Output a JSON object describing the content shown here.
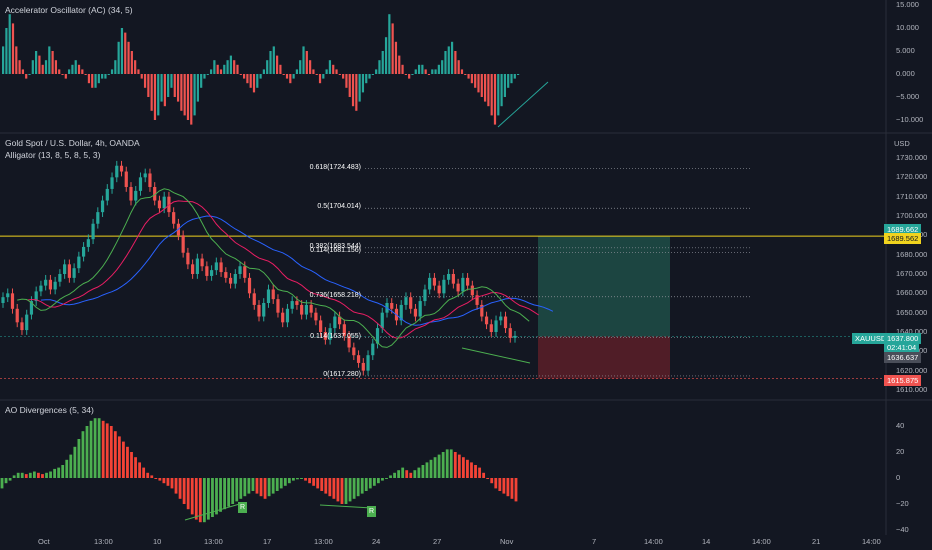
{
  "panels": {
    "ac": {
      "title": "Accelerator Oscillator (AC) (34, 5)"
    },
    "main": {
      "title": "Gold Spot / U.S. Dollar, 4h, OANDA",
      "indicator": "Alligator (13, 8, 5, 8, 5, 3)",
      "currency": "USD"
    },
    "ao": {
      "title": "AO Divergences (5, 34)"
    }
  },
  "ac_axis": [
    "15.000",
    "10.000",
    "5.000",
    "0.000",
    "−5.000",
    "−10.000"
  ],
  "price_axis": [
    "1730.000",
    "1720.000",
    "1710.000",
    "1700.000",
    "1690.000",
    "1680.000",
    "1670.000",
    "1660.000",
    "1650.000",
    "1640.000",
    "1630.000",
    "1620.000",
    "1610.000"
  ],
  "ao_axis": [
    "40",
    "20",
    "0",
    "−20",
    "−40"
  ],
  "time_axis": [
    "Oct",
    "13:00",
    "10",
    "13:00",
    "17",
    "13:00",
    "24",
    "27",
    "Nov",
    "7",
    "14:00",
    "14",
    "14:00",
    "21",
    "14:00"
  ],
  "fib_levels": [
    {
      "label": "0.618(1724.483)",
      "price": 1724.483
    },
    {
      "label": "0.5(1704.014)",
      "price": 1704.014
    },
    {
      "label": "0.382(1683.544)",
      "price": 1683.544
    },
    {
      "label": "0.114(1681.156)",
      "price": 1681.156
    },
    {
      "label": "0.736(1658.218)",
      "price": 1658.218
    },
    {
      "label": "0.114(1637.055)",
      "price": 1637.055
    },
    {
      "label": "0(1617.280)",
      "price": 1617.28
    }
  ],
  "price_tags": {
    "target_upper": "1689.662",
    "target_lower": "1689.562",
    "symbol": "XAUUSD",
    "last": "1637.800",
    "countdown": "02:41:04",
    "level": "1636.637",
    "stop": "1615.875"
  },
  "divergence_markers": [
    "R",
    "R"
  ],
  "colors": {
    "background": "#131722",
    "up": "#26a69a",
    "down": "#ef5350",
    "ao_up": "#4caf50",
    "ao_down": "#f44336",
    "yellow_line": "#f0d31e",
    "jaw": "#2962ff",
    "teeth": "#e91e63",
    "lips": "#4caf50",
    "profit_zone": "#1f4d47",
    "loss_zone": "#5c1f28"
  },
  "chart_data": [
    {
      "type": "bar",
      "title": "Accelerator Oscillator (AC) (34, 5)",
      "ylim": [
        -12,
        16
      ],
      "values": [
        6,
        10,
        13,
        11,
        6,
        3,
        1,
        -1,
        0,
        3,
        5,
        4,
        2,
        3,
        6,
        5,
        3,
        1,
        0,
        -1,
        1,
        2,
        3,
        2,
        1,
        0,
        -2,
        -3,
        -3,
        -2,
        -1,
        -1,
        0,
        1,
        3,
        7,
        10,
        9,
        7,
        5,
        3,
        1,
        -1,
        -3,
        -5,
        -8,
        -10,
        -9,
        -6,
        -7,
        -5,
        -3,
        -5,
        -6,
        -8,
        -9,
        -10,
        -11,
        -9,
        -6,
        -3,
        -1,
        0,
        1,
        3,
        2,
        1,
        2,
        3,
        4,
        3,
        2,
        0,
        -1,
        -2,
        -3,
        -4,
        -3,
        -1,
        1,
        3,
        5,
        6,
        4,
        2,
        0,
        -1,
        -2,
        -1,
        1,
        3,
        6,
        5,
        3,
        1,
        0,
        -2,
        -1,
        1,
        3,
        2,
        1,
        0,
        -1,
        -3,
        -5,
        -7,
        -8,
        -6,
        -4,
        -2,
        -1,
        0,
        1,
        3,
        5,
        8,
        13,
        11,
        7,
        4,
        2,
        0,
        -1,
        0,
        1,
        2,
        2,
        1,
        0,
        1,
        1,
        2,
        3,
        5,
        6,
        7,
        5,
        3,
        1,
        0,
        -1,
        -2,
        -3,
        -4,
        -5,
        -6,
        -7,
        -9,
        -11,
        -9,
        -7,
        -5,
        -3,
        -2,
        -1,
        0
      ]
    },
    {
      "type": "candlestick",
      "title": "Gold Spot / U.S. Dollar, 4h, OANDA",
      "ylabel": "USD",
      "ylim": [
        1606,
        1734
      ],
      "close": [
        1658,
        1660,
        1652,
        1645,
        1641,
        1649,
        1656,
        1661,
        1664,
        1667,
        1662,
        1666,
        1670,
        1675,
        1668,
        1673,
        1679,
        1684,
        1688,
        1696,
        1702,
        1708,
        1714,
        1720,
        1726,
        1723,
        1715,
        1708,
        1713,
        1720,
        1722,
        1715,
        1708,
        1704,
        1710,
        1702,
        1696,
        1690,
        1681,
        1675,
        1670,
        1678,
        1674,
        1669,
        1672,
        1676,
        1671,
        1668,
        1665,
        1670,
        1674,
        1668,
        1660,
        1654,
        1648,
        1655,
        1662,
        1657,
        1650,
        1645,
        1652,
        1656,
        1654,
        1649,
        1654,
        1650,
        1646,
        1640,
        1636,
        1642,
        1648,
        1644,
        1638,
        1632,
        1628,
        1624,
        1620,
        1628,
        1634,
        1642,
        1650,
        1655,
        1652,
        1646,
        1654,
        1658,
        1652,
        1648,
        1656,
        1662,
        1668,
        1664,
        1660,
        1667,
        1670,
        1665,
        1661,
        1668,
        1664,
        1659,
        1654,
        1648,
        1644,
        1640,
        1646,
        1648,
        1642,
        1637,
        1638
      ],
      "open_first": 1655,
      "annotations": [
        "0.618(1724.483)",
        "0.5(1704.014)",
        "0.382(1683.544)",
        "0.114(1681.156)",
        "0.736(1658.218)",
        "0.114(1637.055)",
        "0(1617.280)"
      ]
    },
    {
      "type": "bar",
      "title": "AO Divergences (5, 34)",
      "ylim": [
        -45,
        50
      ],
      "values": [
        -8,
        -4,
        -2,
        2,
        4,
        4,
        3,
        4,
        5,
        4,
        3,
        4,
        5,
        7,
        8,
        10,
        14,
        18,
        24,
        30,
        36,
        40,
        44,
        46,
        46,
        44,
        42,
        40,
        36,
        32,
        28,
        24,
        20,
        16,
        12,
        8,
        4,
        2,
        0,
        -2,
        -4,
        -6,
        -8,
        -12,
        -16,
        -20,
        -24,
        -28,
        -32,
        -34,
        -34,
        -32,
        -30,
        -28,
        -26,
        -24,
        -22,
        -20,
        -18,
        -16,
        -14,
        -12,
        -10,
        -12,
        -14,
        -16,
        -14,
        -12,
        -10,
        -8,
        -6,
        -4,
        -2,
        -1,
        0,
        -2,
        -4,
        -6,
        -8,
        -10,
        -12,
        -14,
        -16,
        -18,
        -20,
        -20,
        -18,
        -16,
        -14,
        -12,
        -10,
        -8,
        -6,
        -4,
        -2,
        0,
        2,
        4,
        6,
        8,
        6,
        4,
        6,
        8,
        10,
        12,
        14,
        16,
        18,
        20,
        22,
        22,
        20,
        18,
        16,
        14,
        12,
        10,
        8,
        4,
        0,
        -4,
        -8,
        -10,
        -12,
        -14,
        -16,
        -18
      ]
    }
  ]
}
